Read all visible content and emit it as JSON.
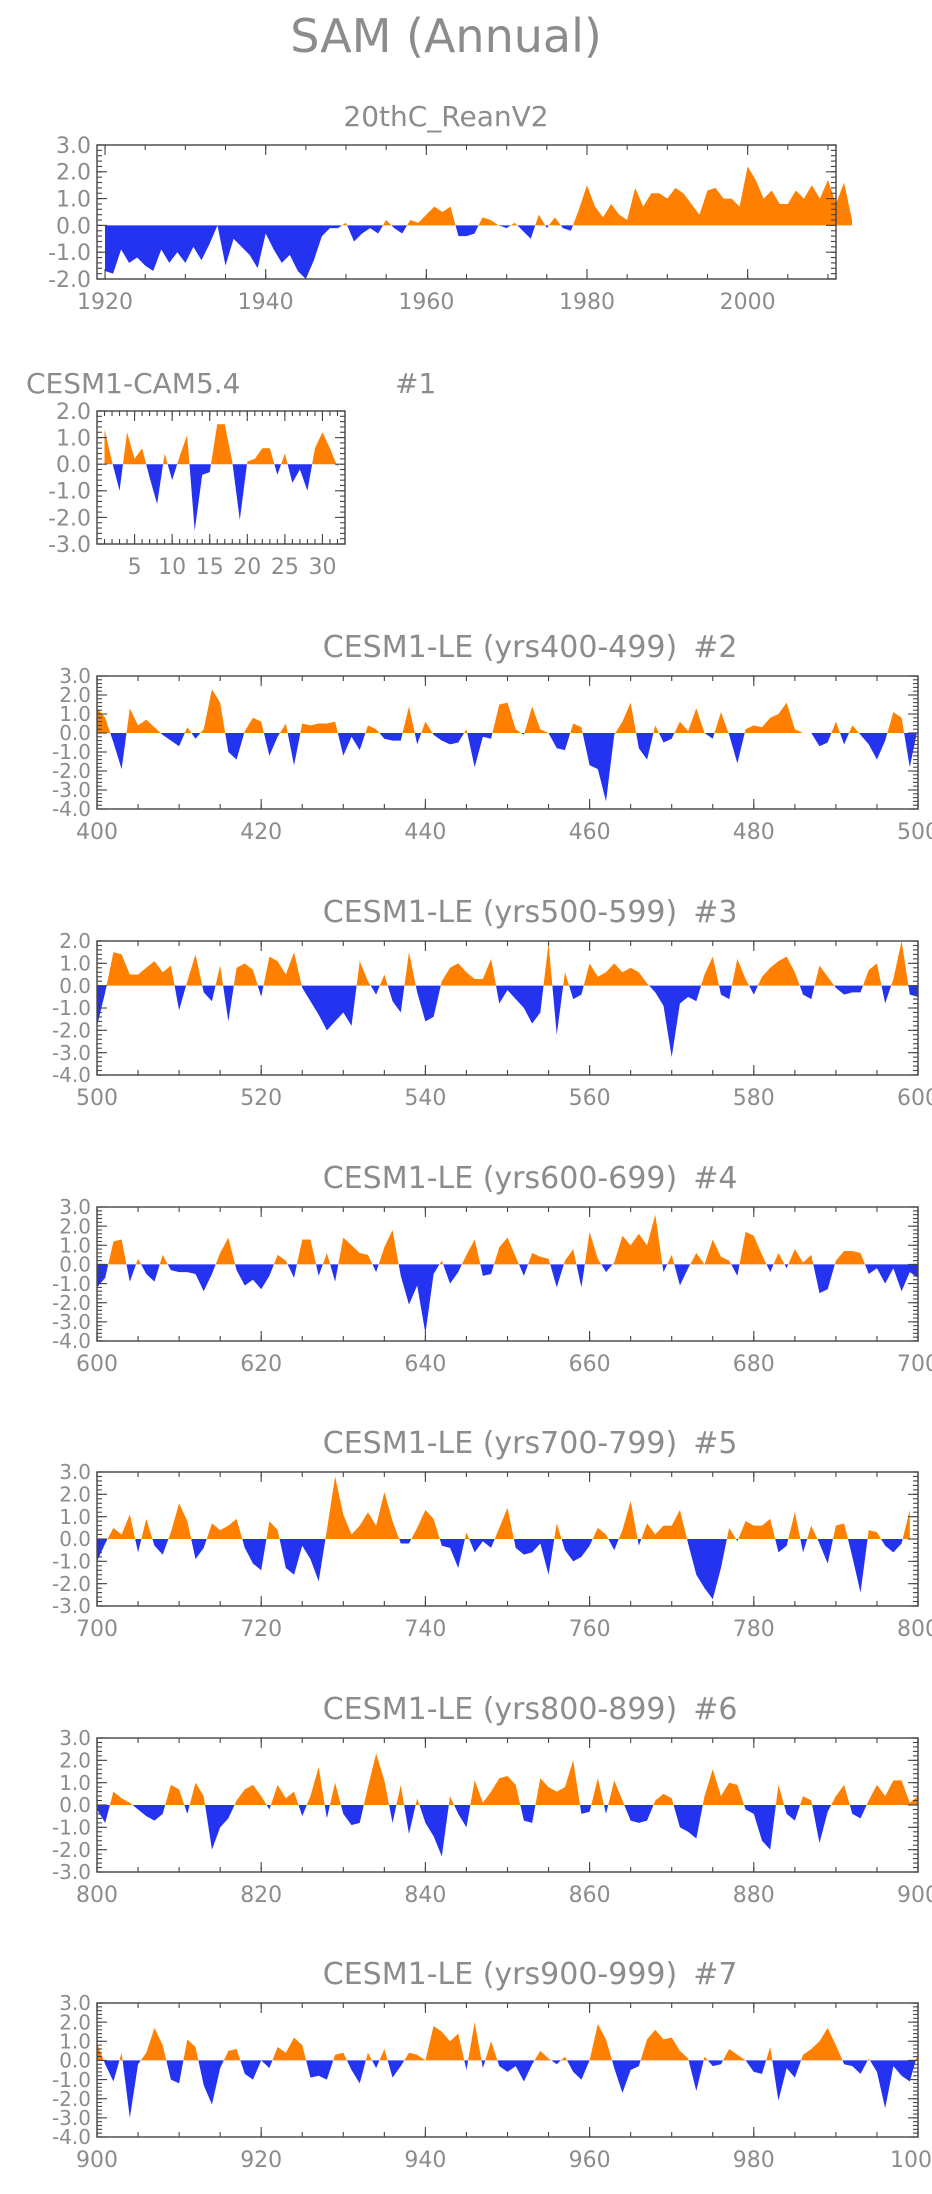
{
  "title": "SAM (Annual)",
  "colors": {
    "positive": "#ff8000",
    "negative": "#2433f0",
    "frame": "#444444",
    "text": "#8c8c8c"
  },
  "chart_data": [
    {
      "type": "area",
      "title": "20thC_ReanV2",
      "panel_id": "",
      "x_start": 1920,
      "xlim": [
        1919,
        2011
      ],
      "ylim": [
        -2.0,
        3.0
      ],
      "yticks": [
        "3.0",
        "2.0",
        "1.0",
        "0.0",
        "-1.0",
        "-2.0"
      ],
      "xticks": [
        "1920",
        "1940",
        "1960",
        "1980",
        "2000"
      ],
      "values": [
        -1.7,
        -1.8,
        -0.9,
        -1.4,
        -1.2,
        -1.5,
        -1.7,
        -0.9,
        -1.4,
        -1.0,
        -1.4,
        -0.8,
        -1.3,
        -0.7,
        0.0,
        -1.5,
        -0.5,
        -0.8,
        -1.1,
        -1.6,
        -0.3,
        -0.9,
        -1.4,
        -1.1,
        -1.7,
        -2.0,
        -1.3,
        -0.4,
        -0.1,
        -0.1,
        0.1,
        -0.6,
        -0.3,
        -0.1,
        -0.3,
        0.2,
        -0.1,
        -0.3,
        0.2,
        0.1,
        0.4,
        0.7,
        0.5,
        0.7,
        -0.4,
        -0.4,
        -0.3,
        0.3,
        0.2,
        0.0,
        -0.1,
        0.1,
        -0.2,
        -0.5,
        0.4,
        -0.1,
        0.3,
        -0.1,
        -0.2,
        0.6,
        1.5,
        0.7,
        0.3,
        0.8,
        0.4,
        0.2,
        1.4,
        0.7,
        1.2,
        1.2,
        1.0,
        1.4,
        1.2,
        0.8,
        0.4,
        1.3,
        1.4,
        1.0,
        1.0,
        0.7,
        2.2,
        1.7,
        1.0,
        1.3,
        0.8,
        0.8,
        1.3,
        1.0,
        1.5,
        1.0,
        1.7,
        0.8,
        1.6,
        0.2
      ],
      "xlabel": "",
      "ylabel": ""
    },
    {
      "type": "area",
      "title": "CESM1-CAM5.4",
      "panel_id": "#1",
      "x_start": 1,
      "xlim": [
        0,
        33
      ],
      "ylim": [
        -3.0,
        2.0
      ],
      "yticks": [
        "2.0",
        "1.0",
        "0.0",
        "-1.0",
        "-2.0",
        "-3.0"
      ],
      "xticks": [
        "5",
        "10",
        "15",
        "20",
        "25",
        "30"
      ],
      "values": [
        1.3,
        0.1,
        -1.0,
        1.2,
        0.2,
        0.6,
        -0.5,
        -1.5,
        0.4,
        -0.6,
        0.3,
        1.1,
        -2.5,
        -0.4,
        -0.3,
        1.5,
        1.5,
        0.1,
        -2.1,
        0.1,
        0.2,
        0.6,
        0.6,
        -0.4,
        0.4,
        -0.7,
        -0.2,
        -1.0,
        0.6,
        1.2,
        0.6,
        -0.1
      ],
      "xlabel": "",
      "ylabel": ""
    },
    {
      "type": "area",
      "title": "CESM1-LE (yrs400-499)",
      "panel_id": "#2",
      "x_start": 400,
      "xlim": [
        400,
        500
      ],
      "ylim": [
        -4.0,
        3.0
      ],
      "yticks": [
        "3.0",
        "2.0",
        "1.0",
        "0.0",
        "-1.0",
        "-2.0",
        "-3.0",
        "-4.0"
      ],
      "xticks": [
        "400",
        "420",
        "440",
        "460",
        "480",
        "500"
      ],
      "values": [
        1.3,
        0.8,
        -0.5,
        -1.9,
        1.3,
        0.4,
        0.7,
        0.3,
        -0.1,
        -0.4,
        -0.7,
        0.3,
        -0.3,
        0.2,
        2.3,
        1.6,
        -1.0,
        -1.4,
        0.1,
        0.8,
        0.6,
        -1.2,
        -0.2,
        0.5,
        -1.7,
        0.5,
        0.4,
        0.5,
        0.5,
        0.6,
        -1.2,
        -0.2,
        -0.9,
        0.4,
        0.2,
        -0.3,
        -0.4,
        -0.4,
        1.4,
        -0.6,
        0.6,
        -0.1,
        -0.4,
        -0.6,
        -0.5,
        0.2,
        -1.8,
        -0.2,
        -0.3,
        1.5,
        1.6,
        0.2,
        -0.1,
        1.4,
        0.2,
        0.0,
        -0.8,
        -0.9,
        0.5,
        0.3,
        -1.7,
        -1.9,
        -3.6,
        -0.1,
        0.6,
        1.6,
        -0.8,
        -1.4,
        0.4,
        -0.5,
        -0.3,
        0.6,
        0.1,
        1.3,
        0.0,
        -0.3,
        1.1,
        -0.1,
        -1.6,
        0.2,
        0.4,
        0.3,
        0.8,
        1.0,
        1.6,
        0.2,
        0.0,
        0.0,
        -0.7,
        -0.5,
        0.6,
        -0.6,
        0.4,
        -0.1,
        -0.6,
        -1.4,
        -0.4,
        1.1,
        0.8,
        -1.8,
        0.3
      ],
      "xlabel": "",
      "ylabel": ""
    },
    {
      "type": "area",
      "title": "CESM1-LE (yrs500-599)",
      "panel_id": "#3",
      "x_start": 500,
      "xlim": [
        500,
        600
      ],
      "ylim": [
        -4.0,
        2.0
      ],
      "yticks": [
        "2.0",
        "1.0",
        "0.0",
        "-1.0",
        "-2.0",
        "-3.0",
        "-4.0"
      ],
      "xticks": [
        "500",
        "520",
        "540",
        "560",
        "580",
        "600"
      ],
      "values": [
        -1.8,
        -0.3,
        1.5,
        1.4,
        0.5,
        0.5,
        0.8,
        1.1,
        0.6,
        0.9,
        -1.1,
        0.2,
        1.4,
        -0.3,
        -0.7,
        0.9,
        -1.6,
        0.8,
        1.0,
        0.7,
        -0.5,
        1.3,
        1.1,
        0.5,
        1.5,
        -0.1,
        -0.7,
        -1.3,
        -2.0,
        -1.6,
        -1.2,
        -1.8,
        1.1,
        0.2,
        -0.4,
        0.5,
        -0.7,
        -1.2,
        1.5,
        -0.3,
        -1.6,
        -1.4,
        0.2,
        0.8,
        1.0,
        0.6,
        0.3,
        0.3,
        1.2,
        -0.8,
        -0.2,
        -0.6,
        -1.0,
        -1.7,
        -1.2,
        1.9,
        -2.2,
        0.6,
        -0.6,
        -0.4,
        1.0,
        0.4,
        0.6,
        1.0,
        0.6,
        0.8,
        0.6,
        0.1,
        -0.3,
        -0.9,
        -3.2,
        -0.8,
        -0.5,
        -0.7,
        0.5,
        1.3,
        -0.4,
        -0.6,
        1.2,
        0.3,
        -0.4,
        0.4,
        0.8,
        1.1,
        1.3,
        0.6,
        -0.4,
        -0.6,
        0.9,
        0.4,
        -0.1,
        -0.4,
        -0.3,
        -0.3,
        0.7,
        1.0,
        -0.8,
        0.3,
        2.0,
        -0.4,
        -0.5
      ],
      "xlabel": "",
      "ylabel": ""
    },
    {
      "type": "area",
      "title": "CESM1-LE (yrs600-699)",
      "panel_id": "#4",
      "x_start": 600,
      "xlim": [
        600,
        700
      ],
      "ylim": [
        -4.0,
        3.0
      ],
      "yticks": [
        "3.0",
        "2.0",
        "1.0",
        "0.0",
        "-1.0",
        "-2.0",
        "-3.0",
        "-4.0"
      ],
      "xticks": [
        "600",
        "620",
        "640",
        "660",
        "680",
        "700"
      ],
      "values": [
        -1.2,
        -0.7,
        1.2,
        1.3,
        -0.9,
        0.3,
        -0.5,
        -0.9,
        0.5,
        -0.3,
        -0.4,
        -0.4,
        -0.5,
        -1.4,
        -0.5,
        0.6,
        1.4,
        -0.3,
        -1.1,
        -0.8,
        -1.3,
        -0.6,
        0.5,
        0.2,
        -0.7,
        1.3,
        1.3,
        -0.6,
        0.6,
        -0.9,
        1.4,
        1.0,
        0.6,
        0.5,
        -0.4,
        0.9,
        1.8,
        -0.6,
        -2.1,
        -1.1,
        -3.6,
        -0.5,
        0.2,
        -1.0,
        -0.4,
        0.5,
        1.3,
        -0.6,
        -0.5,
        0.9,
        1.4,
        0.4,
        -0.6,
        0.6,
        0.4,
        0.3,
        -1.2,
        0.2,
        0.8,
        -1.2,
        1.7,
        0.3,
        -0.4,
        0.1,
        1.5,
        1.0,
        1.6,
        1.0,
        2.6,
        -0.4,
        0.5,
        -1.1,
        -0.2,
        0.6,
        0.0,
        1.3,
        0.4,
        0.2,
        -0.6,
        1.7,
        1.5,
        0.5,
        -0.4,
        0.6,
        -0.2,
        0.8,
        0.1,
        0.5,
        -1.5,
        -1.3,
        0.2,
        0.7,
        0.7,
        0.6,
        -0.5,
        -0.2,
        -1.0,
        -0.2,
        -1.4,
        -0.4,
        -0.7
      ],
      "xlabel": "",
      "ylabel": ""
    },
    {
      "type": "area",
      "title": "CESM1-LE (yrs700-799)",
      "panel_id": "#5",
      "x_start": 700,
      "xlim": [
        700,
        800
      ],
      "ylim": [
        -3.0,
        3.0
      ],
      "yticks": [
        "3.0",
        "2.0",
        "1.0",
        "0.0",
        "-1.0",
        "-2.0",
        "-3.0"
      ],
      "xticks": [
        "700",
        "720",
        "740",
        "760",
        "780",
        "800"
      ],
      "values": [
        -1.0,
        -0.2,
        0.5,
        0.2,
        1.1,
        -0.6,
        0.9,
        -0.3,
        -0.7,
        0.3,
        1.6,
        0.8,
        -0.9,
        -0.4,
        0.7,
        0.4,
        0.6,
        0.9,
        -0.4,
        -1.1,
        -1.4,
        0.8,
        0.4,
        -1.3,
        -1.6,
        -0.3,
        -0.9,
        -1.9,
        0.4,
        2.8,
        1.1,
        0.2,
        0.6,
        1.2,
        0.6,
        2.1,
        0.8,
        -0.2,
        -0.2,
        0.5,
        1.3,
        0.9,
        -0.3,
        -0.4,
        -1.3,
        0.3,
        -0.6,
        -0.1,
        -0.4,
        0.5,
        1.4,
        -0.4,
        -0.7,
        -0.6,
        -0.2,
        -1.6,
        0.7,
        -0.5,
        -1.0,
        -0.8,
        -0.3,
        0.5,
        0.2,
        -0.5,
        0.4,
        1.7,
        -0.3,
        0.7,
        0.2,
        0.6,
        0.6,
        1.3,
        -0.2,
        -1.6,
        -2.2,
        -2.7,
        -1.3,
        0.5,
        -0.1,
        0.8,
        0.6,
        0.6,
        0.9,
        -0.6,
        -0.3,
        1.2,
        -0.6,
        0.6,
        -0.2,
        -1.1,
        0.6,
        0.7,
        -0.8,
        -2.4,
        0.4,
        0.3,
        -0.3,
        -0.6,
        -0.2,
        1.3
      ],
      "xlabel": "",
      "ylabel": ""
    },
    {
      "type": "area",
      "title": "CESM1-LE (yrs800-899)",
      "panel_id": "#6",
      "x_start": 800,
      "xlim": [
        800,
        900
      ],
      "ylim": [
        -3.0,
        3.0
      ],
      "yticks": [
        "3.0",
        "2.0",
        "1.0",
        "0.0",
        "-1.0",
        "-2.0",
        "-3.0"
      ],
      "xticks": [
        "800",
        "820",
        "840",
        "860",
        "880",
        "900"
      ],
      "values": [
        -0.2,
        -0.8,
        0.6,
        0.3,
        0.1,
        -0.2,
        -0.5,
        -0.7,
        -0.4,
        0.9,
        0.7,
        -0.4,
        1.0,
        0.4,
        -2.0,
        -1.0,
        -0.6,
        0.2,
        0.7,
        0.9,
        0.4,
        -0.2,
        0.9,
        0.3,
        0.6,
        -0.5,
        0.4,
        1.7,
        -0.6,
        1.0,
        -0.4,
        -0.9,
        -0.8,
        0.8,
        2.3,
        1.1,
        -0.8,
        0.9,
        -1.3,
        0.3,
        -0.8,
        -1.4,
        -2.3,
        0.4,
        -0.4,
        -1.0,
        1.1,
        0.1,
        0.6,
        1.2,
        1.3,
        0.9,
        -0.7,
        -0.8,
        1.2,
        0.8,
        0.6,
        0.8,
        2.0,
        -0.4,
        -0.3,
        1.2,
        -0.4,
        1.1,
        0.2,
        -0.7,
        -0.8,
        -0.7,
        0.2,
        0.5,
        0.3,
        -1.0,
        -1.2,
        -1.5,
        0.4,
        1.6,
        0.4,
        1.0,
        0.9,
        -0.2,
        -0.4,
        -1.6,
        -2.0,
        0.9,
        -0.4,
        -0.7,
        0.4,
        0.2,
        -1.7,
        -0.3,
        0.4,
        0.9,
        -0.4,
        -0.6,
        0.2,
        0.9,
        0.4,
        1.1,
        1.1,
        0.1,
        0.4
      ],
      "xlabel": "",
      "ylabel": ""
    },
    {
      "type": "area",
      "title": "CESM1-LE (yrs900-999)",
      "panel_id": "#7",
      "x_start": 900,
      "xlim": [
        900,
        1000
      ],
      "ylim": [
        -4.0,
        3.0
      ],
      "yticks": [
        "3.0",
        "2.0",
        "1.0",
        "0.0",
        "-1.0",
        "-2.0",
        "-3.0",
        "-4.0"
      ],
      "xticks": [
        "900",
        "920",
        "940",
        "960",
        "980",
        "1000"
      ],
      "values": [
        0.9,
        -0.2,
        -1.1,
        0.4,
        -3.0,
        -0.2,
        0.4,
        1.7,
        0.8,
        -1.0,
        -1.2,
        1.1,
        0.7,
        -1.3,
        -2.3,
        -0.4,
        0.5,
        0.6,
        -0.7,
        -1.0,
        0.0,
        -0.4,
        0.7,
        0.4,
        1.2,
        0.8,
        -0.9,
        -0.8,
        -1.0,
        0.3,
        0.4,
        -0.5,
        -1.2,
        0.4,
        -0.4,
        0.6,
        -0.9,
        -0.3,
        0.4,
        0.3,
        0.0,
        1.8,
        1.5,
        1.0,
        1.4,
        -0.5,
        2.0,
        -0.4,
        1.0,
        -0.3,
        -0.6,
        -0.3,
        -1.1,
        -0.2,
        0.5,
        0.1,
        -0.2,
        0.2,
        -0.6,
        -1.0,
        0.0,
        1.9,
        1.1,
        -0.4,
        -1.7,
        -0.5,
        -0.3,
        1.1,
        1.6,
        1.1,
        1.2,
        0.5,
        0.1,
        -1.6,
        0.2,
        -0.3,
        -0.2,
        0.6,
        0.3,
        0.0,
        -0.6,
        -0.7,
        0.7,
        -2.1,
        -0.4,
        -0.9,
        0.3,
        0.6,
        1.0,
        1.7,
        0.8,
        -0.2,
        -0.3,
        -0.7,
        0.1,
        -0.6,
        -2.5,
        -0.3,
        -0.8,
        -1.1,
        0.4
      ],
      "xlabel": "",
      "ylabel": ""
    }
  ]
}
